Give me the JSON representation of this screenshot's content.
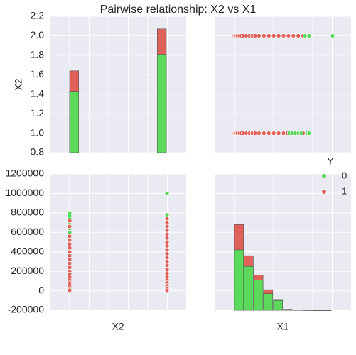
{
  "chart_data": {
    "type": "scatter",
    "title": "Pairwise relationship: X2 vs X1",
    "xlabel_left": "X2",
    "xlabel_right": "X1",
    "ylabel_top": "X2",
    "ylabel_bottom": "",
    "colors": {
      "0": "#5ad95a",
      "1": "#e0605a"
    },
    "legend": {
      "title": "Y",
      "placement": "right",
      "entries": [
        "0",
        "1"
      ]
    },
    "x2_ticks": [
      "0.8",
      "1.0",
      "1.2",
      "1.4",
      "1.6",
      "1.8",
      "2.0",
      "2.2"
    ],
    "x1_ticks": [
      "-200000",
      "0",
      "200000",
      "400000",
      "600000",
      "800000",
      "1000000",
      "1200000"
    ],
    "x2_ylim": [
      0.8,
      2.2
    ],
    "x1_ylim": [
      -200000,
      1200000
    ],
    "hist_x2": {
      "bins": [
        1.0,
        1.1,
        1.2,
        1.3,
        1.4,
        1.5,
        1.6,
        1.7,
        1.8,
        1.9,
        2.0
      ],
      "y0": [
        1.43,
        0.8,
        0.8,
        0.8,
        0.8,
        0.8,
        0.8,
        0.8,
        0.8,
        1.81
      ],
      "y1": [
        1.64,
        0.8,
        0.8,
        0.8,
        0.8,
        0.8,
        0.8,
        0.8,
        0.8,
        2.07
      ]
    },
    "scatter_x2_x1": {
      "rows": [
        {
          "y": 2.0,
          "c1_x": [
            0,
            10000,
            20000,
            30000,
            50000,
            70000,
            90000,
            120000,
            150000,
            180000,
            210000,
            250000,
            300000,
            350000,
            400000,
            450000,
            500000,
            550000,
            600000,
            650000,
            700000
          ],
          "c0_x": [
            720000,
            760000,
            1000000
          ]
        },
        {
          "y": 1.0,
          "c1_x": [
            0,
            10000,
            20000,
            30000,
            50000,
            70000,
            90000,
            120000,
            150000,
            180000,
            210000,
            250000,
            300000,
            350000,
            400000,
            450000,
            500000,
            540000,
            700000
          ],
          "c0_x": [
            560000,
            590000,
            620000,
            650000,
            680000,
            740000,
            760000
          ]
        }
      ]
    },
    "scatter_x1_x2": {
      "cols": [
        {
          "x": 1.0,
          "c0_y": [
            800000,
            770000,
            740000,
            680000,
            640000,
            600000
          ],
          "c1_y": [
            720000,
            660000,
            560000,
            520000,
            480000,
            440000,
            400000,
            360000,
            320000,
            280000,
            240000,
            200000,
            170000,
            140000,
            110000,
            80000,
            60000,
            40000,
            20000,
            5000
          ]
        },
        {
          "x": 2.0,
          "c0_y": [
            1000000,
            780000
          ],
          "c1_y": [
            740000,
            700000,
            660000,
            620000,
            580000,
            540000,
            500000,
            460000,
            420000,
            380000,
            340000,
            300000,
            260000,
            220000,
            180000,
            140000,
            110000,
            80000,
            50000,
            25000,
            5000
          ]
        }
      ]
    },
    "hist_x1": {
      "bins": [
        0,
        100000,
        200000,
        300000,
        400000,
        500000,
        600000,
        700000,
        800000,
        900000,
        1000000
      ],
      "y0": [
        420000,
        250000,
        110000,
        -30000,
        -100000,
        -195000,
        -198000,
        -200000,
        -200000,
        -200000
      ],
      "y1": [
        680000,
        360000,
        160000,
        10000,
        -90000,
        -190000,
        -195000,
        -198000,
        -200000,
        -200000
      ]
    }
  }
}
